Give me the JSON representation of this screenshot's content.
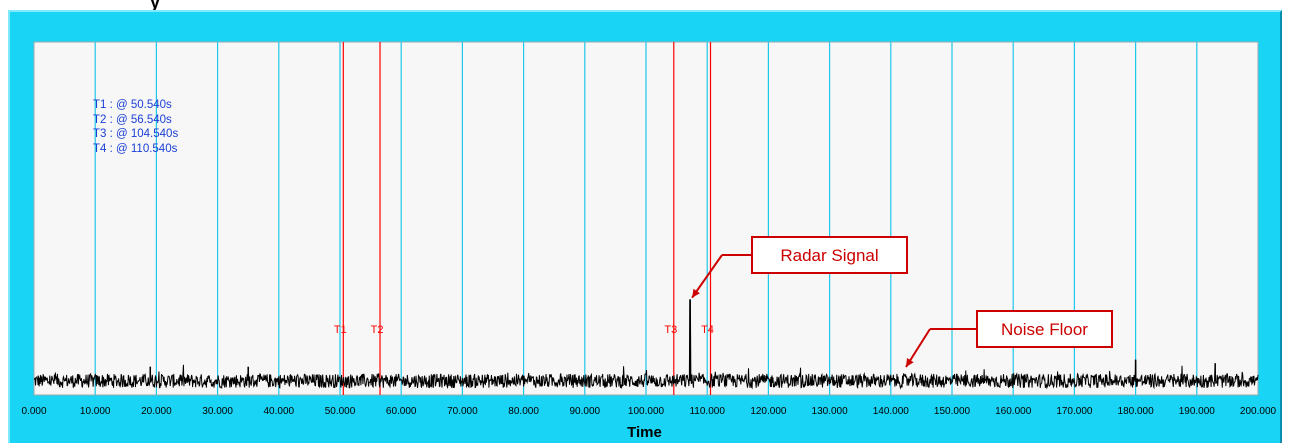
{
  "window": {
    "title_fragment": "y"
  },
  "chart_data": {
    "type": "line",
    "xlabel": "Time",
    "ylabel": "",
    "xlim": [
      0,
      200
    ],
    "x_tick_labels": [
      "0.000",
      "10.000",
      "20.000",
      "30.000",
      "40.000",
      "50.000",
      "60.000",
      "70.000",
      "80.000",
      "90.000",
      "100.000",
      "110.000",
      "120.000",
      "130.000",
      "140.000",
      "150.000",
      "160.000",
      "170.000",
      "180.000",
      "190.000",
      "200.000"
    ],
    "x_ticks": [
      0,
      10,
      20,
      30,
      40,
      50,
      60,
      70,
      80,
      90,
      100,
      110,
      120,
      130,
      140,
      150,
      160,
      170,
      180,
      190,
      200
    ],
    "grid": true,
    "series": [
      {
        "color": "#000000",
        "description_values": {
          "noise_floor_level": 0.04,
          "noise_spread": 0.02
        },
        "peaks": [
          {
            "x": 107.2,
            "y": 0.27
          },
          {
            "x": 180.0,
            "y": 0.1
          },
          {
            "x": 193.0,
            "y": 0.09
          },
          {
            "x": 35.0,
            "y": 0.08
          },
          {
            "x": 19.0,
            "y": 0.08
          }
        ]
      }
    ],
    "cursors": [
      {
        "label": "T1",
        "x": 50.54
      },
      {
        "label": "T2",
        "x": 56.54
      },
      {
        "label": "T3",
        "x": 104.54
      },
      {
        "label": "T4",
        "x": 110.54
      }
    ],
    "cursor_readout": [
      "T1 : @ 50.540s",
      "T2 : @ 56.540s",
      "T3 : @ 104.540s",
      "T4 : @ 110.540s"
    ],
    "annotations": [
      {
        "text": "Radar Signal",
        "target_x": 107.2
      },
      {
        "text": "Noise Floor",
        "target_x": 142.0
      }
    ]
  },
  "colors": {
    "frame": "#1ad4f5",
    "plot_bg": "#f7f7f7",
    "grid": "#1ec8ea",
    "cursor": "#ff0000",
    "callout": "#cc0000",
    "readout": "#1a3fd6"
  }
}
